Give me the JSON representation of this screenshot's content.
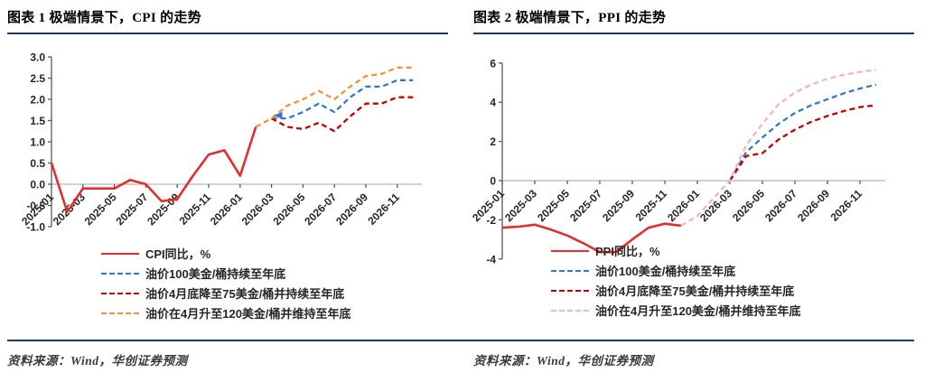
{
  "colors": {
    "accent_rule": "#1f3864",
    "cpi_ppi_solid_red": "#e22e2e",
    "oil100_blue": "#3579c5",
    "oil75_dark_red": "#c00000",
    "oil120_orange": "#ee9440",
    "oil120_pink": "#f0b6bf",
    "axis": "#595959",
    "zero_line": "#a3a3a3",
    "tick_text": "#262626",
    "marker_blue": "#4472c4"
  },
  "panels": [
    {
      "title": "图表 1 极端情景下，CPI 的走势",
      "source": "资料来源：Wind，华创证券预测"
    },
    {
      "title": "图表 2 极端情景下，PPI 的走势",
      "source": "资料来源：Wind，华创证券预测"
    }
  ],
  "chart_data": [
    {
      "type": "line",
      "title": "图表 1 极端情景下，CPI 的走势",
      "x_range": [
        "2025-01",
        "2026-12"
      ],
      "x_freq": "monthly",
      "x_tick_labels": [
        "2025-01",
        "2025-03",
        "2025-05",
        "2025-07",
        "2025-09",
        "2025-11",
        "2026-01",
        "2026-03",
        "2026-05",
        "2026-07",
        "2026-09",
        "2026-11"
      ],
      "ylim": [
        -1.0,
        3.0
      ],
      "yticks": [
        "3.0",
        "2.5",
        "2.0",
        "1.5",
        "1.0",
        "0.5",
        "0.0",
        "-0.5",
        "-1.0"
      ],
      "grid": false,
      "zero_line": true,
      "legend_position": "inside-bottom-left",
      "series": [
        {
          "name": "CPI同比，%",
          "style": "solid",
          "color_key": "cpi_ppi_solid_red",
          "start_index": 0,
          "values": [
            0.5,
            -0.65,
            -0.1,
            -0.1,
            -0.1,
            0.1,
            0.0,
            -0.4,
            -0.35,
            0.2,
            0.7,
            0.8,
            0.2,
            1.35
          ]
        },
        {
          "name": "油价100美金/桶持续至年底",
          "style": "dashed",
          "color_key": "oil100_blue",
          "start_index": 14,
          "values": [
            1.55,
            1.55,
            1.7,
            1.9,
            1.7,
            2.05,
            2.3,
            2.3,
            2.45,
            2.45
          ]
        },
        {
          "name": "油价4月底降至75美金/桶并持续至年底",
          "style": "dashed",
          "color_key": "oil75_dark_red",
          "start_index": 14,
          "values": [
            1.55,
            1.35,
            1.3,
            1.45,
            1.25,
            1.6,
            1.9,
            1.9,
            2.05,
            2.05
          ]
        },
        {
          "name": "油价在4月升至120美金/桶并维持至年底",
          "style": "dashed",
          "color_key": "oil120_orange",
          "start_index": 13,
          "values": [
            1.35,
            1.55,
            1.85,
            2.0,
            2.2,
            2.0,
            2.3,
            2.55,
            2.6,
            2.75,
            2.75
          ]
        }
      ],
      "marker": {
        "month_index": 14.4,
        "value": 1.62,
        "color_key": "marker_blue"
      }
    },
    {
      "type": "line",
      "title": "图表 2 极端情景下，PPI 的走势",
      "x_range": [
        "2025-01",
        "2026-12"
      ],
      "x_freq": "monthly",
      "x_tick_labels": [
        "2025-01",
        "2025-03",
        "2025-05",
        "2025-07",
        "2025-09",
        "2025-11",
        "2026-01",
        "2026-03",
        "2026-05",
        "2026-07",
        "2026-09",
        "2026-11"
      ],
      "ylim": [
        -4,
        6
      ],
      "yticks": [
        "6",
        "4",
        "2",
        "0",
        "-2",
        "-4"
      ],
      "grid": false,
      "zero_line": true,
      "legend_position": "inside-bottom-left",
      "series": [
        {
          "name": "PPI同比，%",
          "style": "solid",
          "color_key": "cpi_ppi_solid_red",
          "start_index": 0,
          "values": [
            -2.4,
            -2.35,
            -2.25,
            -2.5,
            -2.8,
            -3.2,
            -3.65,
            -3.65,
            -3.0,
            -2.4,
            -2.2,
            -2.3
          ]
        },
        {
          "name": "油价100美金/桶持续至年底",
          "style": "dashed",
          "color_key": "oil100_blue",
          "start_index": 14,
          "values": [
            0.0,
            1.45,
            2.2,
            2.9,
            3.45,
            3.85,
            4.15,
            4.45,
            4.7,
            4.9
          ]
        },
        {
          "name": "油价4月底降至75美金/桶并持续至年底",
          "style": "dashed",
          "color_key": "oil75_dark_red",
          "start_index": 14,
          "values": [
            0.0,
            1.25,
            1.4,
            2.1,
            2.6,
            3.0,
            3.3,
            3.55,
            3.75,
            3.85
          ]
        },
        {
          "name": "油价在4月升至120美金/桶并维持至年底",
          "style": "dashed",
          "color_key": "oil120_pink",
          "start_index": 11,
          "values": [
            -2.3,
            -1.8,
            -0.9,
            0.0,
            1.8,
            2.9,
            3.9,
            4.5,
            4.9,
            5.2,
            5.4,
            5.55,
            5.65
          ]
        }
      ]
    }
  ]
}
